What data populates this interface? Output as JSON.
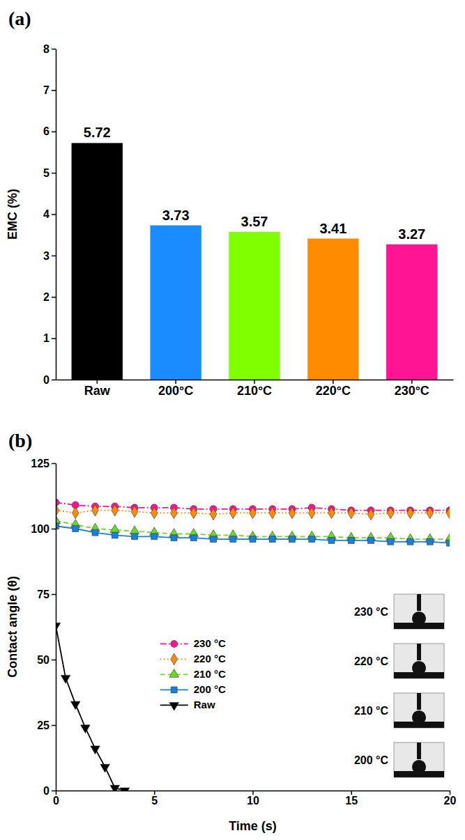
{
  "chart_data": [
    {
      "type": "bar",
      "title": "(a)",
      "y_label": "EMC (%)",
      "categories": [
        "Raw",
        "200°C",
        "210°C",
        "220°C",
        "230°C"
      ],
      "values": [
        5.72,
        3.73,
        3.57,
        3.41,
        3.27
      ],
      "colors": [
        "#000000",
        "#1a8cff",
        "#80ff00",
        "#ff8c00",
        "#ff1493"
      ],
      "ylim": [
        0,
        8
      ],
      "yticks": [
        0,
        1,
        2,
        3,
        4,
        5,
        6,
        7,
        8
      ],
      "grid": false,
      "data_labels": true
    },
    {
      "type": "line",
      "title": "(b)",
      "x_label": "Time (s)",
      "y_label": "Contact angle (θ)",
      "xlim": [
        0,
        20
      ],
      "xticks": [
        0,
        5,
        10,
        15,
        20
      ],
      "ylim": [
        0,
        125
      ],
      "yticks": [
        0,
        25,
        50,
        75,
        100,
        125
      ],
      "grid": false,
      "legend": "center",
      "annotations": [
        "230 °C",
        "220 °C",
        "210 °C",
        "200 °C"
      ],
      "series": [
        {
          "name": "230 °C",
          "color": "#ff1493",
          "marker": "circle",
          "line_style": "dashdot",
          "x": [
            0,
            1,
            2,
            3,
            4,
            5,
            6,
            7,
            8,
            9,
            10,
            11,
            12,
            13,
            14,
            15,
            16,
            17,
            18,
            19,
            20
          ],
          "values": [
            110,
            109,
            108.5,
            108.5,
            108,
            108,
            108,
            107.5,
            107.5,
            107.5,
            107.5,
            107.5,
            107.5,
            108,
            107.5,
            107,
            107,
            107,
            107,
            107,
            107
          ]
        },
        {
          "name": "220 °C",
          "color": "#ff8c00",
          "marker": "diamond",
          "line_style": "dotted",
          "x": [
            0,
            1,
            2,
            3,
            4,
            5,
            6,
            7,
            8,
            9,
            10,
            11,
            12,
            13,
            14,
            15,
            16,
            17,
            18,
            19,
            20
          ],
          "values": [
            107,
            106,
            107,
            107,
            106.5,
            106,
            106,
            106,
            105.5,
            106,
            106,
            106,
            106,
            106,
            106,
            106,
            105.5,
            106,
            106,
            106,
            106
          ]
        },
        {
          "name": "210 °C",
          "color": "#66dd22",
          "marker": "triangle",
          "line_style": "dashed",
          "x": [
            0,
            1,
            2,
            3,
            4,
            5,
            6,
            7,
            8,
            9,
            10,
            11,
            12,
            13,
            14,
            15,
            16,
            17,
            18,
            19,
            20
          ],
          "values": [
            103,
            101.5,
            100,
            99.5,
            99,
            98.5,
            98,
            98,
            97.5,
            97.5,
            97,
            97,
            97,
            97,
            97,
            96.5,
            96.5,
            96.5,
            96,
            96,
            96
          ]
        },
        {
          "name": "200 °C",
          "color": "#1a7fd9",
          "marker": "square",
          "line_style": "solid",
          "x": [
            0,
            1,
            2,
            3,
            4,
            5,
            6,
            7,
            8,
            9,
            10,
            11,
            12,
            13,
            14,
            15,
            16,
            17,
            18,
            19,
            20
          ],
          "values": [
            101,
            100,
            98.5,
            97.5,
            97,
            97,
            96.5,
            96.5,
            96,
            96,
            96,
            96,
            96,
            96,
            95.5,
            95.5,
            95.5,
            95,
            95,
            95,
            94.5
          ]
        },
        {
          "name": "Raw",
          "color": "#000000",
          "marker": "triangle-down",
          "line_style": "solid",
          "x": [
            0,
            0.5,
            1,
            1.5,
            2,
            2.5,
            3,
            3.5
          ],
          "values": [
            63,
            43,
            33,
            24,
            16,
            9,
            1,
            0
          ]
        }
      ]
    }
  ]
}
